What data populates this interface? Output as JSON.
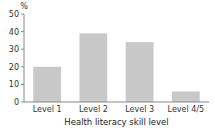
{
  "chart_data": {
    "type": "bar",
    "xlabel": "Health literacy skill level",
    "ylabel": "%",
    "categories": [
      "Level 1",
      "Level 2",
      "Level 3",
      "Level 4/5"
    ],
    "values": [
      20,
      39,
      34,
      6
    ],
    "color": "#c8c8c8",
    "ylim": [
      0,
      50
    ],
    "yticks": [
      0,
      10,
      20,
      30,
      40,
      50
    ],
    "grid": false
  }
}
